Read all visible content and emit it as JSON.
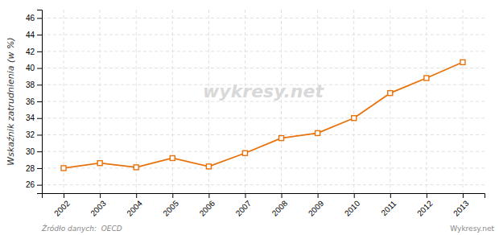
{
  "chart_data": {
    "type": "line",
    "y_label": "Wskaźnik zatrudnienia (w %)",
    "x": [
      2002,
      2003,
      2004,
      2005,
      2006,
      2007,
      2008,
      2009,
      2010,
      2011,
      2012,
      2013
    ],
    "values": [
      28.0,
      28.6,
      28.1,
      29.2,
      28.2,
      29.8,
      31.6,
      32.2,
      34.0,
      37.0,
      38.8,
      40.7
    ],
    "color": "#e8720c",
    "marker": "square",
    "xlim": [
      2001.4,
      2013.6
    ],
    "xticks": [
      2002,
      2003,
      2004,
      2005,
      2006,
      2007,
      2008,
      2009,
      2010,
      2011,
      2012,
      2013
    ],
    "ylim": [
      25,
      47
    ],
    "yticks": [
      26,
      28,
      30,
      32,
      34,
      36,
      38,
      40,
      42,
      44,
      46
    ],
    "grid": true,
    "annotations": [
      "wykresy.net",
      "Źródło danych:  OECD",
      "Wykresy.net"
    ]
  }
}
